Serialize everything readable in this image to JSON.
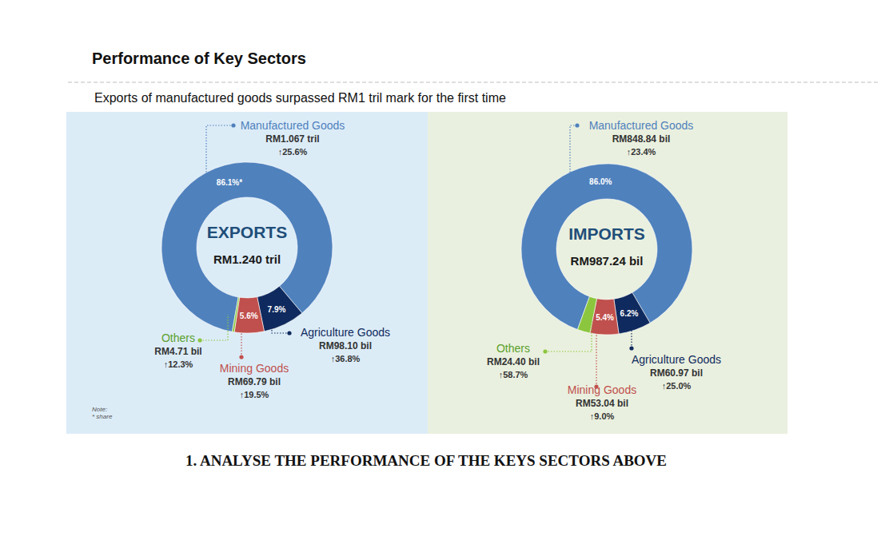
{
  "page": {
    "title": "Performance of Key Sectors",
    "subtitle": "Exports of manufactured goods surpassed RM1 tril mark for the first time",
    "question": "1. ANALYSE THE PERFORMANCE OF THE KEYS SECTORS ABOVE"
  },
  "chart_data": [
    {
      "type": "donut",
      "title": "EXPORTS",
      "subtitle": "RM1.240 tril",
      "categories": [
        "Manufactured Goods",
        "Agriculture Goods",
        "Mining Goods",
        "Others"
      ],
      "values": [
        86.1,
        7.9,
        5.6,
        0.4
      ],
      "value_labels": [
        "86.1%*",
        "7.9%",
        "5.6%",
        null
      ],
      "amount_labels": [
        "RM1.067 tril",
        "RM98.10 bil",
        "RM69.79 bil",
        "RM4.71 bil"
      ],
      "growth_labels": [
        "↑25.6%",
        "↑36.8%",
        "↑19.5%",
        "↑12.3%"
      ],
      "colors": [
        "#4f81bd",
        "#0f2a5e",
        "#c0504d",
        "#8cc63f"
      ],
      "data_labels": true,
      "notes": [
        "Note:",
        "* share"
      ]
    },
    {
      "type": "donut",
      "title": "IMPORTS",
      "subtitle": "RM987.24 bil",
      "categories": [
        "Manufactured Goods",
        "Agriculture Goods",
        "Mining Goods",
        "Others"
      ],
      "values": [
        86.0,
        6.2,
        5.4,
        2.4
      ],
      "value_labels": [
        "86.0%",
        "6.2%",
        "5.4%",
        null
      ],
      "amount_labels": [
        "RM848.84 bil",
        "RM60.97 bil",
        "RM53.04 bil",
        "RM24.40 bil"
      ],
      "growth_labels": [
        "↑23.4%",
        "↑25.0%",
        "↑9.0%",
        "↑58.7%"
      ],
      "colors": [
        "#4f81bd",
        "#0f2a5e",
        "#c0504d",
        "#8cc63f"
      ],
      "data_labels": true
    }
  ]
}
